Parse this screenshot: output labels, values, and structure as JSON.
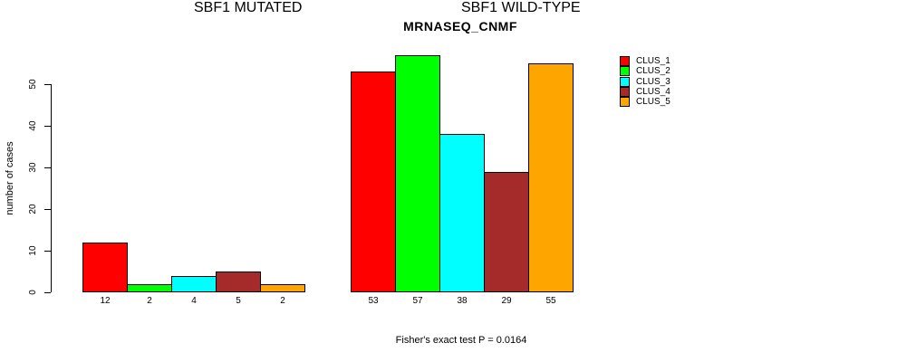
{
  "chart_data": {
    "type": "bar",
    "title": "MRNASEQ_CNMF",
    "ylabel": "number of cases",
    "ylim": [
      0,
      57
    ],
    "yticks": [
      0,
      10,
      20,
      30,
      40,
      50
    ],
    "grid": false,
    "legend_position": "right-outside",
    "series_names": [
      "CLUS_1",
      "CLUS_2",
      "CLUS_3",
      "CLUS_4",
      "CLUS_5"
    ],
    "colors": [
      "#ff0000",
      "#00ff00",
      "#00ffff",
      "#a52a2a",
      "#ffa500"
    ],
    "groups": [
      {
        "label": "SBF1 MUTATED",
        "values": [
          12,
          2,
          4,
          5,
          2
        ]
      },
      {
        "label": "SBF1 WILD-TYPE",
        "values": [
          53,
          57,
          38,
          29,
          55
        ]
      }
    ],
    "annotation": "Fisher's exact test P = 0.0164"
  }
}
